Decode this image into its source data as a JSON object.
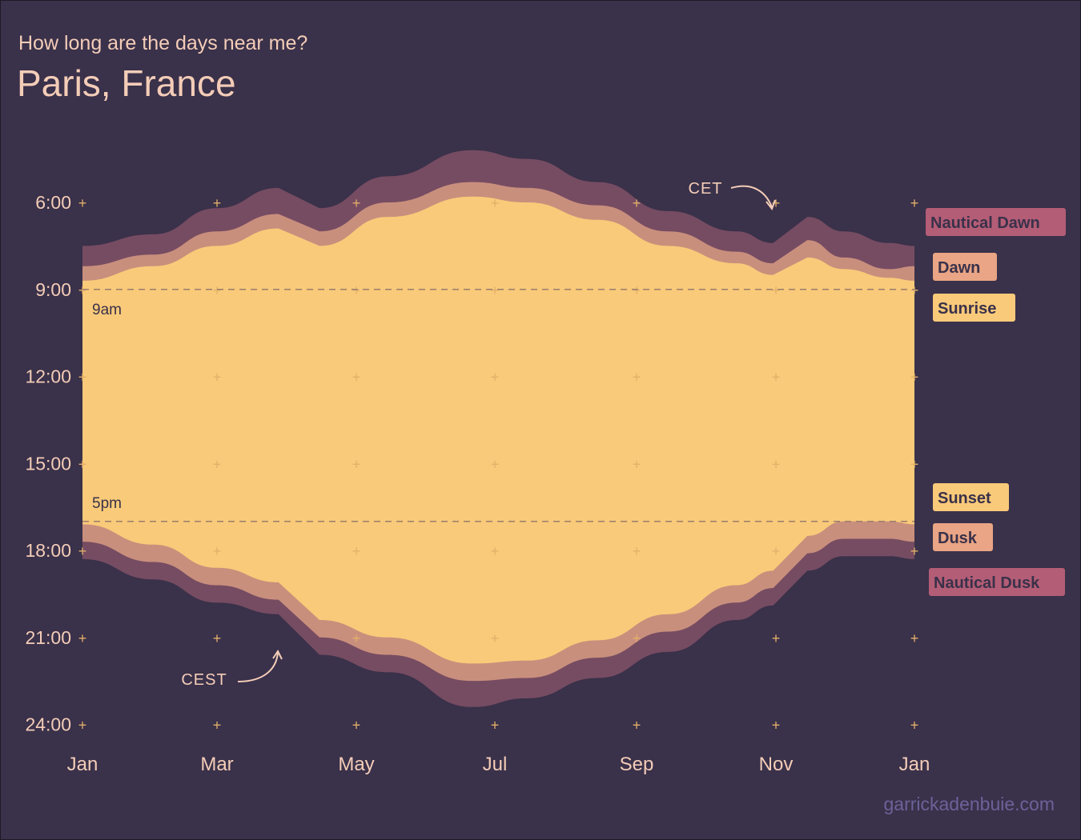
{
  "header": {
    "subtitle": "How long are the days near me?",
    "title": "Paris, France"
  },
  "colors": {
    "background": "#3a314a",
    "nautical": "#764c62",
    "civil": "#c98f7d",
    "day": "#f9ca79",
    "nautical_label": "#b45d76",
    "civil_label": "#e9a585",
    "sunrise_label": "#f9ca79",
    "grid_plus": "#e3b06a",
    "text": "#f4cdb8",
    "credit": "#6c629a"
  },
  "chart_data": {
    "type": "area",
    "x_ticks": [
      "Jan",
      "Mar",
      "May",
      "Jul",
      "Sep",
      "Nov",
      "Jan"
    ],
    "y_ticks": [
      "6:00",
      "9:00",
      "12:00",
      "15:00",
      "18:00",
      "21:00",
      "24:00"
    ],
    "ylim": [
      4,
      24
    ],
    "y_reversed": true,
    "reference_lines": [
      {
        "label": "9am",
        "hour": 9
      },
      {
        "label": "5pm",
        "hour": 17
      }
    ],
    "x": [
      "2021-01-01",
      "2021-02-01",
      "2021-03-01",
      "2021-03-28",
      "2021-04-15",
      "2021-05-15",
      "2021-06-21",
      "2021-07-15",
      "2021-08-15",
      "2021-09-15",
      "2021-10-15",
      "2021-10-31",
      "2021-11-15",
      "2021-12-01",
      "2021-12-21",
      "2022-01-01"
    ],
    "series": [
      {
        "name": "Nautical Dawn",
        "values": [
          7.5,
          7.1,
          6.2,
          5.5,
          6.2,
          5.1,
          4.2,
          4.5,
          5.3,
          6.3,
          7.0,
          7.4,
          6.5,
          7.0,
          7.4,
          7.5
        ]
      },
      {
        "name": "Dawn",
        "values": [
          8.2,
          7.8,
          7.0,
          6.4,
          7.0,
          6.0,
          5.3,
          5.5,
          6.1,
          7.0,
          7.7,
          8.1,
          7.3,
          7.9,
          8.3,
          8.2
        ]
      },
      {
        "name": "Sunrise",
        "values": [
          8.7,
          8.2,
          7.5,
          6.9,
          7.5,
          6.5,
          5.8,
          6.0,
          6.6,
          7.5,
          8.1,
          8.5,
          7.9,
          8.3,
          8.6,
          8.7
        ]
      },
      {
        "name": "Sunset",
        "values": [
          17.1,
          17.8,
          18.6,
          19.1,
          20.4,
          21.0,
          21.9,
          21.8,
          21.1,
          20.2,
          19.2,
          18.7,
          17.5,
          17.0,
          17.0,
          17.1
        ]
      },
      {
        "name": "Dusk",
        "values": [
          17.7,
          18.4,
          19.2,
          19.7,
          21.0,
          21.6,
          22.5,
          22.4,
          21.7,
          20.8,
          19.8,
          19.3,
          18.1,
          17.6,
          17.6,
          17.7
        ]
      },
      {
        "name": "Nautical Dusk",
        "values": [
          18.3,
          19.0,
          19.8,
          20.2,
          21.6,
          22.2,
          23.4,
          23.1,
          22.4,
          21.5,
          20.4,
          19.9,
          18.7,
          18.2,
          18.2,
          18.3
        ]
      }
    ],
    "legend_placement": "right",
    "annotations": [
      {
        "text": "CET",
        "date": "2021-10-31"
      },
      {
        "text": "CEST",
        "date": "2021-03-28"
      }
    ]
  },
  "credit": "garrickadenbuie.com"
}
